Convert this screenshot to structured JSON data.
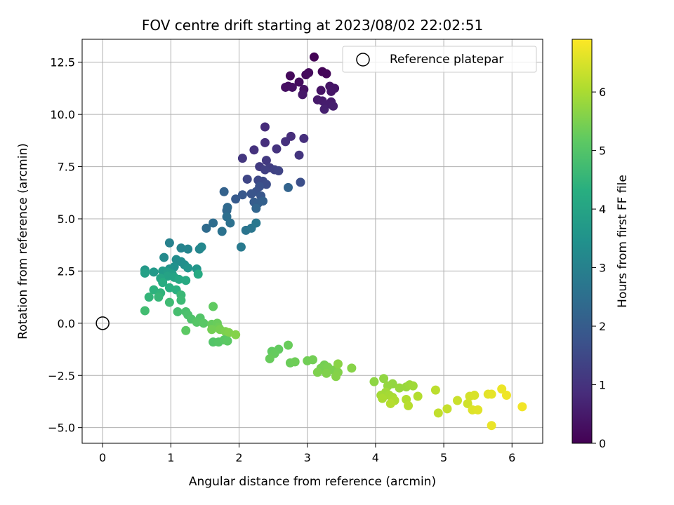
{
  "chart_data": {
    "type": "scatter",
    "title": "FOV centre drift starting at 2023/08/02 22:02:51",
    "xlabel": "Angular distance from reference (arcmin)",
    "ylabel": "Rotation from reference (arcmin)",
    "colorbar_label": "Hours from first FF file",
    "colormap": "viridis",
    "grid": true,
    "xlim": [
      -0.3,
      6.45
    ],
    "ylim": [
      -5.75,
      13.6
    ],
    "x_ticks": [
      0,
      1,
      2,
      3,
      4,
      5,
      6
    ],
    "x_tick_labels": [
      "0",
      "1",
      "2",
      "3",
      "4",
      "5",
      "6"
    ],
    "y_ticks": [
      -5.0,
      -2.5,
      0.0,
      2.5,
      5.0,
      7.5,
      10.0,
      12.5
    ],
    "y_tick_labels": [
      "−5.0",
      "−2.5",
      "0.0",
      "2.5",
      "5.0",
      "7.5",
      "10.0",
      "12.5"
    ],
    "colorbar_range": [
      0,
      6.9
    ],
    "colorbar_ticks": [
      0,
      1,
      2,
      3,
      4,
      5,
      6
    ],
    "colorbar_tick_labels": [
      "0",
      "1",
      "2",
      "3",
      "4",
      "5",
      "6"
    ],
    "legend": {
      "position": "top-right",
      "entries": [
        "Reference platepar"
      ]
    },
    "reference": {
      "x": 0,
      "y": 0
    },
    "points": [
      [
        3.1,
        12.75,
        0.05
      ],
      [
        3.22,
        12.05,
        0.08
      ],
      [
        3.28,
        11.95,
        0.12
      ],
      [
        2.75,
        11.85,
        0.15
      ],
      [
        2.98,
        11.9,
        0.18
      ],
      [
        3.02,
        12.0,
        0.2
      ],
      [
        2.88,
        11.55,
        0.22
      ],
      [
        2.72,
        11.35,
        0.25
      ],
      [
        2.68,
        11.3,
        0.28
      ],
      [
        2.78,
        11.3,
        0.3
      ],
      [
        2.95,
        11.2,
        0.32
      ],
      [
        3.2,
        11.15,
        0.35
      ],
      [
        3.33,
        11.35,
        0.38
      ],
      [
        3.4,
        11.25,
        0.4
      ],
      [
        3.35,
        11.1,
        0.42
      ],
      [
        2.93,
        10.95,
        0.45
      ],
      [
        3.15,
        10.7,
        0.48
      ],
      [
        3.22,
        10.65,
        0.5
      ],
      [
        3.35,
        10.6,
        0.52
      ],
      [
        3.27,
        10.45,
        0.55
      ],
      [
        3.38,
        10.4,
        0.58
      ],
      [
        3.25,
        10.25,
        0.6
      ],
      [
        2.38,
        9.4,
        0.85
      ],
      [
        2.76,
        8.95,
        0.88
      ],
      [
        2.95,
        8.85,
        0.9
      ],
      [
        2.38,
        8.65,
        0.92
      ],
      [
        2.68,
        8.7,
        0.95
      ],
      [
        2.22,
        8.3,
        0.98
      ],
      [
        2.55,
        8.35,
        1.0
      ],
      [
        2.88,
        8.05,
        1.05
      ],
      [
        2.05,
        7.9,
        1.1
      ],
      [
        2.4,
        7.8,
        1.15
      ],
      [
        2.3,
        7.5,
        1.2
      ],
      [
        2.45,
        7.45,
        1.25
      ],
      [
        2.38,
        7.35,
        1.3
      ],
      [
        2.52,
        7.35,
        1.35
      ],
      [
        2.58,
        7.3,
        1.4
      ],
      [
        2.12,
        6.9,
        1.45
      ],
      [
        2.28,
        6.85,
        1.5
      ],
      [
        2.35,
        6.8,
        1.55
      ],
      [
        2.4,
        6.65,
        1.6
      ],
      [
        2.9,
        6.75,
        1.65
      ],
      [
        2.3,
        6.55,
        1.7
      ],
      [
        2.25,
        6.3,
        1.75
      ],
      [
        2.18,
        6.2,
        1.8
      ],
      [
        2.32,
        6.1,
        1.85
      ],
      [
        2.05,
        6.15,
        1.9
      ],
      [
        1.95,
        5.95,
        1.95
      ],
      [
        2.22,
        5.8,
        2.0
      ],
      [
        2.28,
        5.75,
        2.05
      ],
      [
        2.35,
        5.85,
        2.1
      ],
      [
        1.78,
        6.3,
        2.15
      ],
      [
        2.72,
        6.5,
        2.2
      ],
      [
        2.25,
        5.5,
        2.25
      ],
      [
        1.82,
        5.4,
        2.3
      ],
      [
        1.83,
        5.55,
        2.35
      ],
      [
        1.52,
        4.55,
        2.4
      ],
      [
        1.62,
        4.8,
        2.45
      ],
      [
        1.82,
        5.1,
        2.5
      ],
      [
        1.87,
        4.8,
        2.55
      ],
      [
        1.75,
        4.4,
        2.6
      ],
      [
        2.1,
        4.45,
        2.65
      ],
      [
        2.18,
        4.55,
        2.7
      ],
      [
        2.25,
        4.8,
        2.75
      ],
      [
        2.03,
        3.65,
        2.8
      ],
      [
        0.98,
        3.85,
        3.0
      ],
      [
        1.15,
        3.6,
        3.05
      ],
      [
        1.25,
        3.55,
        3.1
      ],
      [
        1.42,
        3.55,
        3.15
      ],
      [
        1.45,
        3.65,
        3.2
      ],
      [
        0.9,
        3.15,
        3.25
      ],
      [
        1.08,
        3.05,
        3.3
      ],
      [
        1.15,
        2.95,
        3.35
      ],
      [
        1.2,
        2.8,
        3.4
      ],
      [
        1.05,
        2.7,
        3.45
      ],
      [
        0.98,
        2.6,
        3.5
      ],
      [
        1.25,
        2.65,
        3.55
      ],
      [
        1.38,
        2.6,
        3.6
      ],
      [
        0.62,
        2.55,
        3.65
      ],
      [
        0.75,
        2.45,
        3.7
      ],
      [
        0.88,
        2.5,
        3.75
      ],
      [
        0.95,
        2.45,
        3.8
      ],
      [
        1.02,
        2.35,
        3.85
      ],
      [
        0.62,
        2.4,
        3.9
      ],
      [
        0.95,
        2.25,
        3.95
      ],
      [
        1.05,
        2.2,
        4.0
      ],
      [
        0.85,
        2.15,
        4.05
      ],
      [
        1.12,
        2.1,
        4.1
      ],
      [
        1.22,
        2.05,
        4.15
      ],
      [
        1.4,
        2.35,
        4.2
      ],
      [
        0.88,
        1.95,
        4.25
      ],
      [
        0.98,
        1.7,
        4.3
      ],
      [
        1.08,
        1.6,
        4.35
      ],
      [
        0.75,
        1.6,
        4.4
      ],
      [
        0.85,
        1.45,
        4.45
      ],
      [
        0.68,
        1.25,
        4.5
      ],
      [
        0.82,
        1.25,
        4.55
      ],
      [
        1.15,
        1.35,
        4.6
      ],
      [
        1.15,
        1.1,
        4.65
      ],
      [
        0.98,
        1.0,
        4.7
      ],
      [
        0.62,
        0.6,
        4.75
      ],
      [
        1.1,
        0.55,
        4.8
      ],
      [
        1.22,
        0.55,
        4.85
      ],
      [
        1.25,
        0.4,
        4.9
      ],
      [
        1.3,
        0.2,
        4.95
      ],
      [
        1.43,
        0.25,
        5.0
      ],
      [
        1.38,
        0.05,
        5.05
      ],
      [
        1.48,
        0.0,
        5.1
      ],
      [
        1.22,
        -0.35,
        5.15
      ],
      [
        1.62,
        0.8,
        5.2
      ],
      [
        1.6,
        -0.05,
        5.25
      ],
      [
        1.68,
        0.0,
        5.3
      ],
      [
        1.7,
        -0.2,
        5.35
      ],
      [
        1.6,
        -0.3,
        5.4
      ],
      [
        1.72,
        -0.3,
        5.45
      ],
      [
        1.8,
        -0.4,
        5.5
      ],
      [
        1.85,
        -0.45,
        5.55
      ],
      [
        1.95,
        -0.55,
        5.6
      ],
      [
        1.62,
        -0.9,
        5.0
      ],
      [
        1.7,
        -0.9,
        5.05
      ],
      [
        1.78,
        -0.8,
        5.1
      ],
      [
        1.83,
        -0.85,
        5.15
      ],
      [
        2.48,
        -1.35,
        5.2
      ],
      [
        2.58,
        -1.25,
        5.22
      ],
      [
        2.52,
        -1.45,
        5.25
      ],
      [
        2.45,
        -1.7,
        5.28
      ],
      [
        2.72,
        -1.05,
        5.3
      ],
      [
        2.75,
        -1.9,
        5.32
      ],
      [
        2.82,
        -1.85,
        5.35
      ],
      [
        3.0,
        -1.8,
        5.38
      ],
      [
        3.08,
        -1.75,
        5.4
      ],
      [
        3.25,
        -2.0,
        5.42
      ],
      [
        3.2,
        -2.15,
        5.45
      ],
      [
        3.3,
        -2.1,
        5.48
      ],
      [
        3.38,
        -2.25,
        5.5
      ],
      [
        3.15,
        -2.35,
        5.52
      ],
      [
        3.28,
        -2.4,
        5.55
      ],
      [
        3.45,
        -2.35,
        5.58
      ],
      [
        3.42,
        -2.55,
        5.6
      ],
      [
        3.65,
        -2.15,
        5.62
      ],
      [
        3.45,
        -1.95,
        5.65
      ],
      [
        3.98,
        -2.8,
        5.7
      ],
      [
        4.12,
        -2.65,
        5.72
      ],
      [
        4.25,
        -2.9,
        5.75
      ],
      [
        4.18,
        -3.0,
        5.78
      ],
      [
        4.35,
        -3.1,
        5.8
      ],
      [
        4.45,
        -3.05,
        5.82
      ],
      [
        4.5,
        -2.95,
        5.85
      ],
      [
        4.55,
        -3.0,
        5.88
      ],
      [
        4.15,
        -3.3,
        5.9
      ],
      [
        4.08,
        -3.45,
        5.92
      ],
      [
        4.2,
        -3.45,
        5.95
      ],
      [
        4.25,
        -3.55,
        5.98
      ],
      [
        4.1,
        -3.6,
        6.0
      ],
      [
        4.28,
        -3.7,
        6.05
      ],
      [
        4.45,
        -3.65,
        6.08
      ],
      [
        4.62,
        -3.5,
        6.1
      ],
      [
        4.22,
        -3.85,
        6.12
      ],
      [
        4.48,
        -3.95,
        6.15
      ],
      [
        4.88,
        -3.2,
        6.2
      ],
      [
        4.92,
        -4.3,
        6.25
      ],
      [
        5.05,
        -4.1,
        6.3
      ],
      [
        5.2,
        -3.7,
        6.35
      ],
      [
        5.35,
        -3.85,
        6.4
      ],
      [
        5.38,
        -3.5,
        6.45
      ],
      [
        5.45,
        -3.45,
        6.5
      ],
      [
        5.42,
        -4.15,
        6.55
      ],
      [
        5.5,
        -4.15,
        6.6
      ],
      [
        5.65,
        -3.4,
        6.62
      ],
      [
        5.7,
        -3.4,
        6.65
      ],
      [
        5.7,
        -4.9,
        6.7
      ],
      [
        5.85,
        -3.15,
        6.72
      ],
      [
        5.92,
        -3.45,
        6.75
      ],
      [
        6.15,
        -4.0,
        6.78
      ]
    ]
  }
}
